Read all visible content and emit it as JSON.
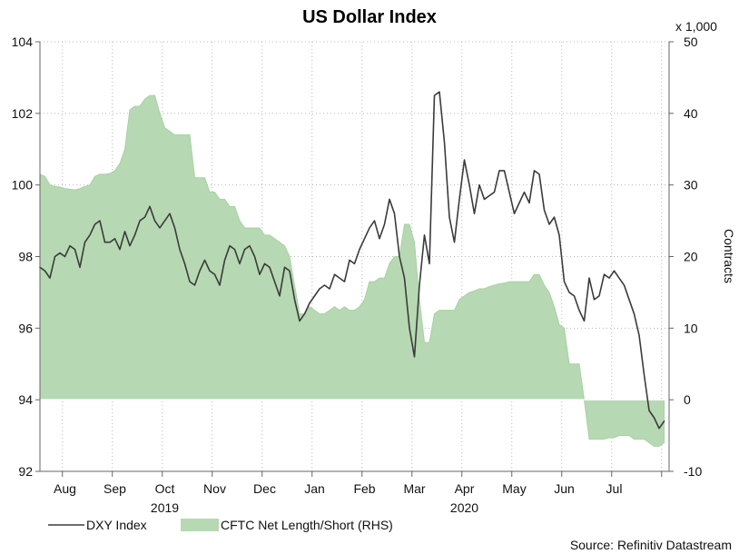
{
  "chart_data": {
    "type": "line",
    "title": "US Dollar Index",
    "xlabel": "",
    "ylabel_left": "",
    "ylabel_right": "Contracts",
    "right_axis_unit": "x 1,000",
    "source": "Source: Refinitiv Datastream",
    "x_domain": [
      0,
      12.6
    ],
    "x_axis_months": [
      "Aug",
      "Sep",
      "Oct",
      "Nov",
      "Dec",
      "Jan",
      "Feb",
      "Mar",
      "Apr",
      "May",
      "Jun",
      "Jul"
    ],
    "x_axis_years": [
      "2019",
      "2020"
    ],
    "ylim_left": [
      92,
      104
    ],
    "ylim_right": [
      -10,
      50
    ],
    "yticks_left": [
      "92",
      "94",
      "96",
      "98",
      "100",
      "102",
      "104"
    ],
    "yticks_right": [
      "-10",
      "0",
      "10",
      "20",
      "30",
      "40",
      "50"
    ],
    "legend": [
      {
        "name": "DXY Index",
        "type": "line"
      },
      {
        "name": "CFTC Net Length/Short (RHS)",
        "type": "area"
      }
    ],
    "series": [
      {
        "name": "DXY Index",
        "axis": "left",
        "x": [
          0.0,
          0.1,
          0.2,
          0.3,
          0.4,
          0.5,
          0.6,
          0.7,
          0.8,
          0.9,
          1.0,
          1.1,
          1.2,
          1.3,
          1.4,
          1.5,
          1.6,
          1.7,
          1.8,
          1.9,
          2.0,
          2.1,
          2.2,
          2.3,
          2.4,
          2.5,
          2.6,
          2.7,
          2.8,
          2.9,
          3.0,
          3.1,
          3.2,
          3.3,
          3.4,
          3.5,
          3.6,
          3.7,
          3.8,
          3.9,
          4.0,
          4.1,
          4.2,
          4.3,
          4.4,
          4.5,
          4.6,
          4.7,
          4.8,
          4.9,
          5.0,
          5.1,
          5.2,
          5.3,
          5.4,
          5.5,
          5.6,
          5.7,
          5.8,
          5.9,
          6.0,
          6.1,
          6.2,
          6.3,
          6.4,
          6.5,
          6.6,
          6.7,
          6.8,
          6.9,
          7.0,
          7.1,
          7.2,
          7.3,
          7.4,
          7.5,
          7.6,
          7.7,
          7.8,
          7.9,
          8.0,
          8.1,
          8.2,
          8.3,
          8.4,
          8.5,
          8.6,
          8.7,
          8.8,
          8.9,
          9.0,
          9.1,
          9.2,
          9.3,
          9.4,
          9.5,
          9.6,
          9.7,
          9.8,
          9.9,
          10.0,
          10.1,
          10.2,
          10.3,
          10.4,
          10.5,
          10.6,
          10.7,
          10.8,
          10.9,
          11.0,
          11.1,
          11.2,
          11.3,
          11.4,
          11.5,
          11.6,
          11.7,
          11.8,
          11.9,
          12.0,
          12.1,
          12.2,
          12.3,
          12.4,
          12.5
        ],
        "values": [
          97.7,
          97.6,
          97.4,
          98.0,
          98.1,
          98.0,
          98.3,
          98.2,
          97.7,
          98.4,
          98.6,
          98.9,
          99.0,
          98.4,
          98.4,
          98.5,
          98.2,
          98.7,
          98.3,
          98.6,
          99.0,
          99.1,
          99.4,
          99.0,
          98.8,
          99.0,
          99.2,
          98.8,
          98.2,
          97.8,
          97.3,
          97.2,
          97.6,
          97.9,
          97.6,
          97.5,
          97.2,
          97.9,
          98.3,
          98.2,
          97.8,
          98.2,
          98.3,
          98.0,
          97.5,
          97.8,
          97.7,
          97.3,
          96.9,
          97.7,
          97.6,
          96.8,
          96.2,
          96.4,
          96.7,
          96.9,
          97.1,
          97.2,
          97.1,
          97.5,
          97.4,
          97.3,
          97.9,
          97.8,
          98.2,
          98.5,
          98.8,
          99.0,
          98.5,
          98.9,
          99.6,
          99.2,
          98.0,
          97.4,
          96.0,
          95.2,
          97.2,
          98.6,
          97.8,
          102.5,
          102.6,
          101.2,
          99.1,
          98.4,
          99.6,
          100.7,
          100.0,
          99.2,
          100.0,
          99.6,
          99.7,
          99.8,
          100.4,
          100.4,
          99.8,
          99.2,
          99.5,
          99.8,
          99.5,
          100.4,
          100.3,
          99.3,
          98.9,
          99.1,
          98.6,
          97.3,
          97.0,
          96.9,
          96.5,
          96.2,
          97.4,
          96.8,
          96.9,
          97.5,
          97.4,
          97.6,
          97.4,
          97.2,
          96.8,
          96.4,
          95.8,
          94.7,
          93.7,
          93.5,
          93.2,
          93.4
        ]
      },
      {
        "name": "CFTC Net Length/Short (RHS)",
        "axis": "right",
        "x": [
          0.0,
          0.1,
          0.2,
          0.3,
          0.4,
          0.5,
          0.6,
          0.7,
          0.8,
          0.9,
          1.0,
          1.1,
          1.2,
          1.3,
          1.4,
          1.5,
          1.6,
          1.7,
          1.8,
          1.9,
          2.0,
          2.1,
          2.2,
          2.3,
          2.4,
          2.5,
          2.6,
          2.7,
          2.8,
          2.9,
          3.0,
          3.1,
          3.2,
          3.3,
          3.4,
          3.5,
          3.6,
          3.7,
          3.8,
          3.9,
          4.0,
          4.1,
          4.2,
          4.3,
          4.4,
          4.5,
          4.6,
          4.7,
          4.8,
          4.9,
          5.0,
          5.1,
          5.2,
          5.3,
          5.4,
          5.5,
          5.6,
          5.7,
          5.8,
          5.9,
          6.0,
          6.1,
          6.2,
          6.3,
          6.4,
          6.5,
          6.6,
          6.7,
          6.8,
          6.9,
          7.0,
          7.1,
          7.2,
          7.3,
          7.4,
          7.5,
          7.6,
          7.7,
          7.8,
          7.9,
          8.0,
          8.1,
          8.2,
          8.3,
          8.4,
          8.5,
          8.6,
          8.7,
          8.8,
          8.9,
          9.0,
          9.1,
          9.2,
          9.3,
          9.4,
          9.5,
          9.6,
          9.7,
          9.8,
          9.9,
          10.0,
          10.1,
          10.2,
          10.3,
          10.4,
          10.5,
          10.6,
          10.7,
          10.8,
          10.9,
          11.0,
          11.1,
          11.2,
          11.3,
          11.4,
          11.5,
          11.6,
          11.7,
          11.8,
          11.9,
          12.0,
          12.1,
          12.2,
          12.3,
          12.4,
          12.5
        ],
        "values": [
          31.5,
          31.2,
          30.0,
          29.8,
          29.7,
          29.5,
          29.4,
          29.3,
          29.5,
          29.8,
          30.0,
          31.2,
          31.5,
          31.5,
          31.6,
          32.0,
          33.0,
          35.0,
          40.5,
          41.0,
          41.0,
          42.0,
          42.5,
          42.5,
          40.0,
          38.0,
          37.5,
          37.0,
          37.0,
          37.0,
          37.0,
          31.0,
          31.0,
          31.0,
          29.0,
          29.0,
          28.0,
          28.0,
          27.0,
          27.0,
          25.0,
          24.0,
          24.0,
          24.0,
          24.0,
          23.0,
          23.0,
          22.5,
          22.0,
          21.5,
          20.0,
          16.0,
          12.0,
          12.0,
          13.0,
          12.5,
          12.0,
          12.0,
          12.5,
          13.0,
          12.5,
          13.0,
          12.5,
          12.5,
          13.0,
          14.0,
          16.5,
          16.5,
          17.0,
          17.0,
          19.0,
          20.0,
          20.0,
          24.5,
          24.5,
          22.0,
          14.0,
          8.0,
          8.0,
          12.0,
          12.5,
          12.5,
          12.5,
          12.5,
          14.0,
          14.5,
          15.0,
          15.2,
          15.5,
          15.5,
          15.8,
          16.0,
          16.2,
          16.3,
          16.5,
          16.5,
          16.5,
          16.5,
          16.5,
          17.5,
          17.5,
          16.0,
          15.0,
          13.0,
          10.5,
          10.0,
          5.0,
          5.0,
          5.0,
          0.0,
          -5.5,
          -5.5,
          -5.5,
          -5.5,
          -5.3,
          -5.3,
          -5.0,
          -5.0,
          -5.0,
          -5.5,
          -5.5,
          -5.5,
          -6.0,
          -6.5,
          -6.5,
          -6.0
        ]
      }
    ]
  },
  "colors": {
    "line": "#3b3b3b",
    "area": "#b6d8b2",
    "area_stroke": "#a9d1a4",
    "grid": "#b8b8b8",
    "axis": "#666666",
    "text": "#111111",
    "zero_line": "#ffffff"
  }
}
